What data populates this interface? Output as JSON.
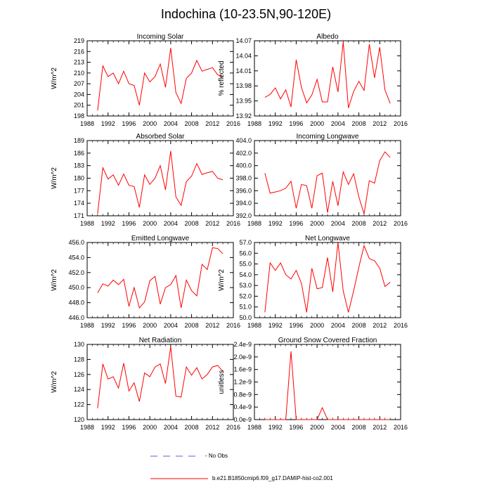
{
  "main_title": "Indochina (10-23.5N,90-120E)",
  "legend": [
    {
      "label": "- No Obs",
      "color": "#6a5acd",
      "style": "dashed"
    },
    {
      "label": "b.e21.B1850cmip6.f09_g17.DAMIP-hist-co2.001",
      "color": "#ff0000",
      "style": "solid"
    }
  ],
  "chart_data": [
    {
      "type": "line",
      "title": "Incoming Solar",
      "ylabel": "W/m^2",
      "xlim": [
        1988,
        2016
      ],
      "ylim": [
        198,
        219
      ],
      "xticks": [
        1988,
        1992,
        1996,
        2000,
        2004,
        2008,
        2012,
        2016
      ],
      "yticks": [
        198,
        201,
        204,
        207,
        210,
        213,
        216,
        219
      ],
      "ytick_labels": [
        "198",
        "201",
        "204",
        "207",
        "210",
        "213",
        "216",
        "219"
      ],
      "series": [
        {
          "color": "#ff0000",
          "x": [
            1990,
            1991,
            1992,
            1993,
            1994,
            1995,
            1996,
            1997,
            1998,
            1999,
            2000,
            2001,
            2002,
            2003,
            2004,
            2005,
            2006,
            2007,
            2008,
            2009,
            2010,
            2011,
            2012,
            2013,
            2014
          ],
          "y": [
            199.5,
            212.0,
            209.0,
            210.0,
            207.0,
            210.5,
            207.0,
            206.5,
            201.0,
            210.0,
            207.5,
            209.0,
            212.5,
            206.0,
            217.0,
            204.5,
            201.5,
            208.5,
            210.0,
            213.5,
            210.5,
            211.0,
            211.5,
            209.5,
            209.0
          ]
        }
      ]
    },
    {
      "type": "line",
      "title": "Albedo",
      "ylabel": "% reflected",
      "xlim": [
        1988,
        2016
      ],
      "ylim": [
        13.92,
        14.07
      ],
      "xticks": [
        1988,
        1992,
        1996,
        2000,
        2004,
        2008,
        2012,
        2016
      ],
      "yticks": [
        13.92,
        13.95,
        13.98,
        14.01,
        14.04,
        14.07
      ],
      "ytick_labels": [
        "13.92",
        "13.95",
        "13.98",
        "14.01",
        "14.04",
        "14.07"
      ],
      "series": [
        {
          "color": "#ff0000",
          "x": [
            1990,
            1991,
            1992,
            1993,
            1994,
            1995,
            1996,
            1997,
            1998,
            1999,
            2000,
            2001,
            2002,
            2003,
            2004,
            2005,
            2006,
            2007,
            2008,
            2009,
            2010,
            2011,
            2012,
            2013,
            2014
          ],
          "y": [
            13.957,
            13.963,
            13.976,
            13.954,
            13.972,
            13.938,
            14.032,
            13.977,
            13.946,
            13.962,
            13.993,
            13.948,
            13.948,
            14.018,
            13.968,
            14.068,
            13.936,
            13.969,
            13.989,
            13.971,
            14.063,
            13.996,
            14.057,
            13.972,
            13.945
          ]
        }
      ]
    },
    {
      "type": "line",
      "title": "Absorbed Solar",
      "ylabel": "W/m^2",
      "xlim": [
        1988,
        2016
      ],
      "ylim": [
        171,
        189
      ],
      "xticks": [
        1988,
        1992,
        1996,
        2000,
        2004,
        2008,
        2012,
        2016
      ],
      "yticks": [
        171,
        174,
        177,
        180,
        183,
        186,
        189
      ],
      "ytick_labels": [
        "171",
        "174",
        "177",
        "180",
        "183",
        "186",
        "189"
      ],
      "series": [
        {
          "color": "#ff0000",
          "x": [
            1990,
            1991,
            1992,
            1993,
            1994,
            1995,
            1996,
            1997,
            1998,
            1999,
            2000,
            2001,
            2002,
            2003,
            2004,
            2005,
            2006,
            2007,
            2008,
            2009,
            2010,
            2011,
            2012,
            2013,
            2014
          ],
          "y": [
            171.5,
            182.5,
            179.8,
            180.8,
            178.3,
            181.0,
            178.3,
            178.0,
            173.0,
            180.8,
            178.5,
            180.0,
            183.0,
            177.2,
            186.5,
            175.5,
            173.5,
            179.2,
            180.5,
            183.5,
            180.9,
            181.3,
            181.6,
            180.0,
            179.6
          ]
        }
      ]
    },
    {
      "type": "line",
      "title": "Incoming Longwave",
      "ylabel": "",
      "xlim": [
        1988,
        2016
      ],
      "ylim": [
        392.0,
        404.0
      ],
      "xticks": [
        1988,
        1992,
        1996,
        2000,
        2004,
        2008,
        2012,
        2016
      ],
      "yticks": [
        392,
        394,
        396,
        398,
        400,
        402,
        404
      ],
      "ytick_labels": [
        "392.0",
        "394.0",
        "396.0",
        "398.0",
        "400.0",
        "402.0",
        "404.0"
      ],
      "series": [
        {
          "color": "#ff0000",
          "x": [
            1990,
            1991,
            1992,
            1993,
            1994,
            1995,
            1996,
            1997,
            1998,
            1999,
            2000,
            2001,
            2002,
            2003,
            2004,
            2005,
            2006,
            2007,
            2008,
            2009,
            2010,
            2011,
            2012,
            2013,
            2014
          ],
          "y": [
            398.8,
            395.6,
            395.8,
            396.0,
            396.4,
            397.5,
            393.2,
            397.0,
            396.8,
            393.2,
            398.4,
            398.8,
            392.5,
            397.5,
            393.6,
            399.0,
            397.0,
            398.7,
            395.0,
            392.3,
            397.6,
            397.2,
            400.8,
            402.2,
            401.3
          ]
        }
      ]
    },
    {
      "type": "line",
      "title": "Emitted Longwave",
      "ylabel": "W/m^2",
      "xlim": [
        1988,
        2016
      ],
      "ylim": [
        446.0,
        456.0
      ],
      "xticks": [
        1988,
        1992,
        1996,
        2000,
        2004,
        2008,
        2012,
        2016
      ],
      "yticks": [
        446,
        448,
        450,
        452,
        454,
        456
      ],
      "ytick_labels": [
        "446.0",
        "448.0",
        "450.0",
        "452.0",
        "454.0",
        "456.0"
      ],
      "series": [
        {
          "color": "#ff0000",
          "x": [
            1990,
            1991,
            1992,
            1993,
            1994,
            1995,
            1996,
            1997,
            1998,
            1999,
            2000,
            2001,
            2002,
            2003,
            2004,
            2005,
            2006,
            2007,
            2008,
            2009,
            2010,
            2011,
            2012,
            2013,
            2014
          ],
          "y": [
            449.3,
            450.5,
            450.2,
            451.0,
            450.4,
            451.1,
            447.5,
            450.0,
            447.3,
            448.1,
            450.9,
            451.5,
            447.8,
            450.0,
            450.4,
            451.6,
            447.3,
            451.0,
            449.6,
            448.9,
            453.1,
            452.4,
            455.3,
            455.2,
            454.5
          ]
        }
      ]
    },
    {
      "type": "line",
      "title": "Net Longwave",
      "ylabel": "W/m^2",
      "xlim": [
        1988,
        2016
      ],
      "ylim": [
        50.0,
        57.0
      ],
      "xticks": [
        1988,
        1992,
        1996,
        2000,
        2004,
        2008,
        2012,
        2016
      ],
      "yticks": [
        50,
        51,
        52,
        53,
        54,
        55,
        56,
        57
      ],
      "ytick_labels": [
        "50.0",
        "51.0",
        "52.0",
        "53.0",
        "54.0",
        "55.0",
        "56.0",
        "57.0"
      ],
      "series": [
        {
          "color": "#ff0000",
          "x": [
            1990,
            1991,
            1992,
            1993,
            1994,
            1995,
            1996,
            1997,
            1998,
            1999,
            2000,
            2001,
            2002,
            2003,
            2004,
            2005,
            2006,
            2007,
            2008,
            2009,
            2010,
            2011,
            2012,
            2013,
            2014
          ],
          "y": [
            50.5,
            55.1,
            54.4,
            55.1,
            54.0,
            53.6,
            54.4,
            53.2,
            50.5,
            54.6,
            52.7,
            52.8,
            55.6,
            52.4,
            57.0,
            52.5,
            50.5,
            52.5,
            54.7,
            56.7,
            55.5,
            55.3,
            54.6,
            52.9,
            53.3
          ]
        }
      ]
    },
    {
      "type": "line",
      "title": "Net Radiation",
      "ylabel": "W/m^2",
      "xlim": [
        1988,
        2016
      ],
      "ylim": [
        120,
        130
      ],
      "xticks": [
        1988,
        1992,
        1996,
        2000,
        2004,
        2008,
        2012,
        2016
      ],
      "yticks": [
        120,
        122,
        124,
        126,
        128,
        130
      ],
      "ytick_labels": [
        "120",
        "122",
        "124",
        "126",
        "128",
        "130"
      ],
      "series": [
        {
          "color": "#ff0000",
          "x": [
            1990,
            1991,
            1992,
            1993,
            1994,
            1995,
            1996,
            1997,
            1998,
            1999,
            2000,
            2001,
            2002,
            2003,
            2004,
            2005,
            2006,
            2007,
            2008,
            2009,
            2010,
            2011,
            2012,
            2013,
            2014
          ],
          "y": [
            121.5,
            127.4,
            125.4,
            125.7,
            124.2,
            127.5,
            123.8,
            124.9,
            122.4,
            126.2,
            125.7,
            127.0,
            127.4,
            124.8,
            129.7,
            123.1,
            123.0,
            127.0,
            125.9,
            126.9,
            125.4,
            126.0,
            127.0,
            127.2,
            126.4
          ]
        }
      ]
    },
    {
      "type": "line",
      "title": "Ground Snow Covered Fraction",
      "ylabel": "unitless",
      "xlim": [
        1988,
        2016
      ],
      "ylim": [
        0,
        2.4e-09
      ],
      "xticks": [
        1988,
        1992,
        1996,
        2000,
        2004,
        2008,
        2012,
        2016
      ],
      "yticks": [
        0,
        4e-10,
        8e-10,
        1.2e-09,
        1.6e-09,
        2e-09,
        2.4e-09
      ],
      "ytick_labels": [
        "0.0e-9",
        "0.4e-9",
        "0.8e-9",
        "1.2e-9",
        "1.6e-9",
        "2.0e-9",
        "2.4e-9"
      ],
      "series": [
        {
          "color": "#ff0000",
          "x": [
            1990,
            1991,
            1992,
            1993,
            1994,
            1995,
            1996,
            1997,
            1998,
            1999,
            2000,
            2001,
            2002,
            2003,
            2004,
            2005,
            2006,
            2007,
            2008,
            2009,
            2010,
            2011,
            2012,
            2013,
            2014
          ],
          "y": [
            0,
            0,
            0,
            0,
            0,
            2.18e-09,
            0,
            0,
            0,
            0,
            0,
            3.8e-10,
            0,
            0,
            0,
            0,
            0,
            0,
            0,
            0,
            0,
            0,
            0,
            0,
            0
          ]
        }
      ]
    }
  ]
}
